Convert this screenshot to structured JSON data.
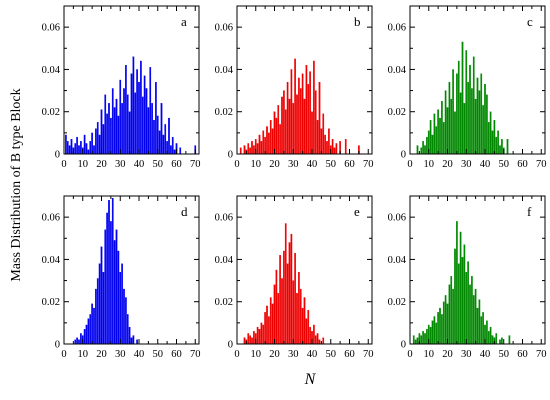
{
  "figure": {
    "ylabel": "Mass Distribution of B type Block",
    "xlabel": "N"
  },
  "chart_data": [
    {
      "type": "bar",
      "label": "a",
      "color": "#0000ee",
      "xlim": [
        0,
        72
      ],
      "ylim": [
        0,
        0.07
      ],
      "xticks": [
        0,
        10,
        20,
        30,
        40,
        50,
        60,
        70
      ],
      "yticks": [
        0,
        0.02,
        0.04,
        0.06
      ],
      "x": [
        1,
        2,
        3,
        4,
        5,
        6,
        7,
        8,
        9,
        10,
        11,
        12,
        13,
        14,
        15,
        16,
        17,
        18,
        19,
        20,
        21,
        22,
        23,
        24,
        25,
        26,
        27,
        28,
        29,
        30,
        31,
        32,
        33,
        34,
        35,
        36,
        37,
        38,
        39,
        40,
        41,
        42,
        43,
        44,
        45,
        46,
        47,
        48,
        49,
        50,
        51,
        52,
        53,
        54,
        55,
        56,
        57,
        58,
        59,
        60,
        61,
        62,
        63,
        64,
        65,
        66,
        67,
        68,
        69,
        70
      ],
      "values": [
        0.009,
        0.006,
        0.004,
        0.007,
        0.003,
        0.005,
        0.008,
        0.004,
        0.006,
        0.003,
        0.009,
        0.005,
        0.002,
        0.006,
        0.01,
        0.004,
        0.012,
        0.015,
        0.009,
        0.021,
        0.014,
        0.028,
        0.019,
        0.024,
        0.017,
        0.031,
        0.022,
        0.026,
        0.018,
        0.035,
        0.024,
        0.031,
        0.042,
        0.028,
        0.02,
        0.038,
        0.046,
        0.029,
        0.04,
        0.034,
        0.044,
        0.027,
        0.037,
        0.031,
        0.022,
        0.041,
        0.024,
        0.016,
        0.034,
        0.018,
        0.011,
        0.024,
        0.009,
        0.014,
        0.006,
        0.017,
        0.004,
        0.008,
        0.002,
        0.005,
        0,
        0.003,
        0,
        0,
        0,
        0,
        0,
        0,
        0,
        0.004
      ]
    },
    {
      "type": "bar",
      "label": "b",
      "color": "#ee0000",
      "xlim": [
        0,
        72
      ],
      "ylim": [
        0,
        0.07
      ],
      "xticks": [
        0,
        10,
        20,
        30,
        40,
        50,
        60,
        70
      ],
      "yticks": [
        0,
        0.02,
        0.04,
        0.06
      ],
      "x": [
        1,
        2,
        3,
        4,
        5,
        6,
        7,
        8,
        9,
        10,
        11,
        12,
        13,
        14,
        15,
        16,
        17,
        18,
        19,
        20,
        21,
        22,
        23,
        24,
        25,
        26,
        27,
        28,
        29,
        30,
        31,
        32,
        33,
        34,
        35,
        36,
        37,
        38,
        39,
        40,
        41,
        42,
        43,
        44,
        45,
        46,
        47,
        48,
        49,
        50,
        51,
        52,
        53,
        54,
        55,
        56,
        57,
        58,
        59,
        60,
        61,
        62,
        63,
        64,
        65,
        66,
        67,
        68,
        69,
        70
      ],
      "values": [
        0,
        0.003,
        0,
        0.004,
        0.002,
        0.005,
        0.003,
        0.006,
        0.004,
        0.007,
        0.005,
        0.009,
        0.006,
        0.011,
        0.008,
        0.013,
        0.01,
        0.016,
        0.012,
        0.02,
        0.017,
        0.023,
        0.014,
        0.027,
        0.03,
        0.021,
        0.034,
        0.026,
        0.04,
        0.024,
        0.045,
        0.028,
        0.036,
        0.031,
        0.038,
        0.026,
        0.042,
        0.033,
        0.039,
        0.02,
        0.044,
        0.03,
        0.016,
        0.034,
        0.012,
        0.019,
        0.009,
        0.006,
        0.012,
        0.004,
        0.007,
        0.003,
        0.005,
        0,
        0.006,
        0,
        0,
        0.007,
        0,
        0,
        0,
        0,
        0,
        0,
        0.004,
        0,
        0,
        0,
        0,
        0
      ]
    },
    {
      "type": "bar",
      "label": "c",
      "color": "#008800",
      "xlim": [
        0,
        72
      ],
      "ylim": [
        0,
        0.07
      ],
      "xticks": [
        0,
        10,
        20,
        30,
        40,
        50,
        60,
        70
      ],
      "yticks": [
        0,
        0.02,
        0.04,
        0.06
      ],
      "x": [
        1,
        2,
        3,
        4,
        5,
        6,
        7,
        8,
        9,
        10,
        11,
        12,
        13,
        14,
        15,
        16,
        17,
        18,
        19,
        20,
        21,
        22,
        23,
        24,
        25,
        26,
        27,
        28,
        29,
        30,
        31,
        32,
        33,
        34,
        35,
        36,
        37,
        38,
        39,
        40,
        41,
        42,
        43,
        44,
        45,
        46,
        47,
        48,
        49,
        50,
        51,
        52,
        53,
        54,
        55,
        56,
        57,
        58,
        59,
        60,
        61,
        62,
        63,
        64,
        65,
        66,
        67,
        68,
        69,
        70
      ],
      "values": [
        0,
        0,
        0,
        0.004,
        0,
        0.003,
        0.006,
        0.004,
        0.008,
        0.011,
        0.016,
        0.009,
        0.019,
        0.013,
        0.021,
        0.017,
        0.025,
        0.015,
        0.03,
        0.022,
        0.034,
        0.026,
        0.04,
        0.02,
        0.038,
        0.044,
        0.029,
        0.053,
        0.024,
        0.049,
        0.034,
        0.042,
        0.031,
        0.046,
        0.026,
        0.036,
        0.03,
        0.038,
        0.023,
        0.033,
        0.028,
        0.015,
        0.02,
        0.011,
        0.016,
        0.008,
        0.011,
        0.004,
        0.007,
        0.003,
        0,
        0.007,
        0,
        0,
        0,
        0,
        0,
        0,
        0,
        0,
        0,
        0,
        0,
        0,
        0,
        0,
        0,
        0,
        0,
        0
      ]
    },
    {
      "type": "bar",
      "label": "d",
      "color": "#0000ee",
      "xlim": [
        0,
        72
      ],
      "ylim": [
        0,
        0.07
      ],
      "xticks": [
        0,
        10,
        20,
        30,
        40,
        50,
        60,
        70
      ],
      "yticks": [
        0,
        0.02,
        0.04,
        0.06
      ],
      "x": [
        1,
        2,
        3,
        4,
        5,
        6,
        7,
        8,
        9,
        10,
        11,
        12,
        13,
        14,
        15,
        16,
        17,
        18,
        19,
        20,
        21,
        22,
        23,
        24,
        25,
        26,
        27,
        28,
        29,
        30,
        31,
        32,
        33,
        34,
        35,
        36,
        37,
        38,
        39,
        40
      ],
      "values": [
        0,
        0,
        0,
        0,
        0,
        0.002,
        0.003,
        0.002,
        0.005,
        0.004,
        0.007,
        0.009,
        0.012,
        0.014,
        0.019,
        0.017,
        0.026,
        0.031,
        0.038,
        0.046,
        0.034,
        0.054,
        0.062,
        0.068,
        0.058,
        0.069,
        0.049,
        0.054,
        0.044,
        0.034,
        0.038,
        0.026,
        0.022,
        0.014,
        0.008,
        0.003,
        0.004,
        0,
        0.002,
        0
      ]
    },
    {
      "type": "bar",
      "label": "e",
      "color": "#ee0000",
      "xlim": [
        0,
        72
      ],
      "ylim": [
        0,
        0.07
      ],
      "xticks": [
        0,
        10,
        20,
        30,
        40,
        50,
        60,
        70
      ],
      "yticks": [
        0,
        0.02,
        0.04,
        0.06
      ],
      "x": [
        1,
        2,
        3,
        4,
        5,
        6,
        7,
        8,
        9,
        10,
        11,
        12,
        13,
        14,
        15,
        16,
        17,
        18,
        19,
        20,
        21,
        22,
        23,
        24,
        25,
        26,
        27,
        28,
        29,
        30,
        31,
        32,
        33,
        34,
        35,
        36,
        37,
        38,
        39,
        40,
        41,
        42,
        43,
        44,
        45,
        46,
        47,
        48,
        49,
        50
      ],
      "values": [
        0,
        0,
        0,
        0.003,
        0.002,
        0.005,
        0.004,
        0.003,
        0.006,
        0.005,
        0.008,
        0.007,
        0.01,
        0.009,
        0.015,
        0.018,
        0.013,
        0.022,
        0.019,
        0.028,
        0.035,
        0.024,
        0.042,
        0.031,
        0.044,
        0.057,
        0.038,
        0.048,
        0.052,
        0.03,
        0.043,
        0.024,
        0.034,
        0.026,
        0.017,
        0.022,
        0.012,
        0.016,
        0.008,
        0.006,
        0.009,
        0.004,
        0.005,
        0.002,
        0,
        0.003,
        0,
        0,
        0,
        0
      ]
    },
    {
      "type": "bar",
      "label": "f",
      "color": "#008800",
      "xlim": [
        0,
        72
      ],
      "ylim": [
        0,
        0.07
      ],
      "xticks": [
        0,
        10,
        20,
        30,
        40,
        50,
        60,
        70
      ],
      "yticks": [
        0,
        0.02,
        0.04,
        0.06
      ],
      "x": [
        1,
        2,
        3,
        4,
        5,
        6,
        7,
        8,
        9,
        10,
        11,
        12,
        13,
        14,
        15,
        16,
        17,
        18,
        19,
        20,
        21,
        22,
        23,
        24,
        25,
        26,
        27,
        28,
        29,
        30,
        31,
        32,
        33,
        34,
        35,
        36,
        37,
        38,
        39,
        40,
        41,
        42,
        43,
        44,
        45,
        46,
        47,
        48,
        49,
        50,
        51,
        52,
        53,
        54,
        55
      ],
      "values": [
        0,
        0.004,
        0.002,
        0.003,
        0.005,
        0.004,
        0.006,
        0.005,
        0.007,
        0.009,
        0.008,
        0.011,
        0.013,
        0.01,
        0.015,
        0.017,
        0.014,
        0.02,
        0.023,
        0.019,
        0.028,
        0.032,
        0.026,
        0.045,
        0.058,
        0.038,
        0.053,
        0.041,
        0.047,
        0.034,
        0.039,
        0.028,
        0.032,
        0.023,
        0.026,
        0.017,
        0.021,
        0.013,
        0.015,
        0.009,
        0.011,
        0.006,
        0.008,
        0.004,
        0.003,
        0.005,
        0,
        0.002,
        0.003,
        0,
        0,
        0,
        0.004,
        0,
        0
      ]
    }
  ]
}
